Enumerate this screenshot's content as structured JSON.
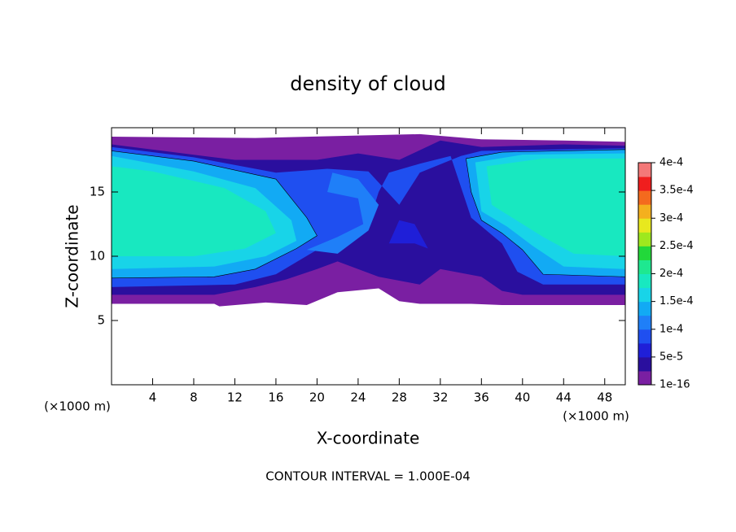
{
  "chart_data": {
    "type": "contour",
    "title": "density of cloud",
    "x_label": "X-coordinate",
    "y_label": "Z-coordinate",
    "x_unit": "(×1000 m)",
    "y_unit": "(×1000 m)",
    "footnote": "CONTOUR INTERVAL = 1.000E-04",
    "xlim": [
      0,
      50
    ],
    "xticks": [
      4,
      8,
      12,
      16,
      20,
      24,
      28,
      32,
      36,
      40,
      44,
      48
    ],
    "ylim": [
      0,
      20
    ],
    "yticks": [
      5,
      10,
      15
    ],
    "colorbar_lim": [
      1e-16,
      0.0004
    ],
    "colorbar_ticks": [
      {
        "value": 1e-16,
        "label": "1e-16"
      },
      {
        "value": 5e-05,
        "label": "5e-5"
      },
      {
        "value": 0.0001,
        "label": "1e-4"
      },
      {
        "value": 0.00015,
        "label": "1.5e-4"
      },
      {
        "value": 0.0002,
        "label": "2e-4"
      },
      {
        "value": 0.00025,
        "label": "2.5e-4"
      },
      {
        "value": 0.0003,
        "label": "3e-4"
      },
      {
        "value": 0.00035,
        "label": "3.5e-4"
      },
      {
        "value": 0.0004,
        "label": "4e-4"
      }
    ],
    "colorscale": [
      "#7a1fa2",
      "#2a0f9e",
      "#1f1fd8",
      "#1f4ff0",
      "#1f7ff8",
      "#12aaf4",
      "#18d4e8",
      "#18e8c0",
      "#1ee890",
      "#22d83a",
      "#9ee81e",
      "#e8e81e",
      "#f4b01e",
      "#f46a1e",
      "#f01e1e",
      "#f47878"
    ]
  }
}
